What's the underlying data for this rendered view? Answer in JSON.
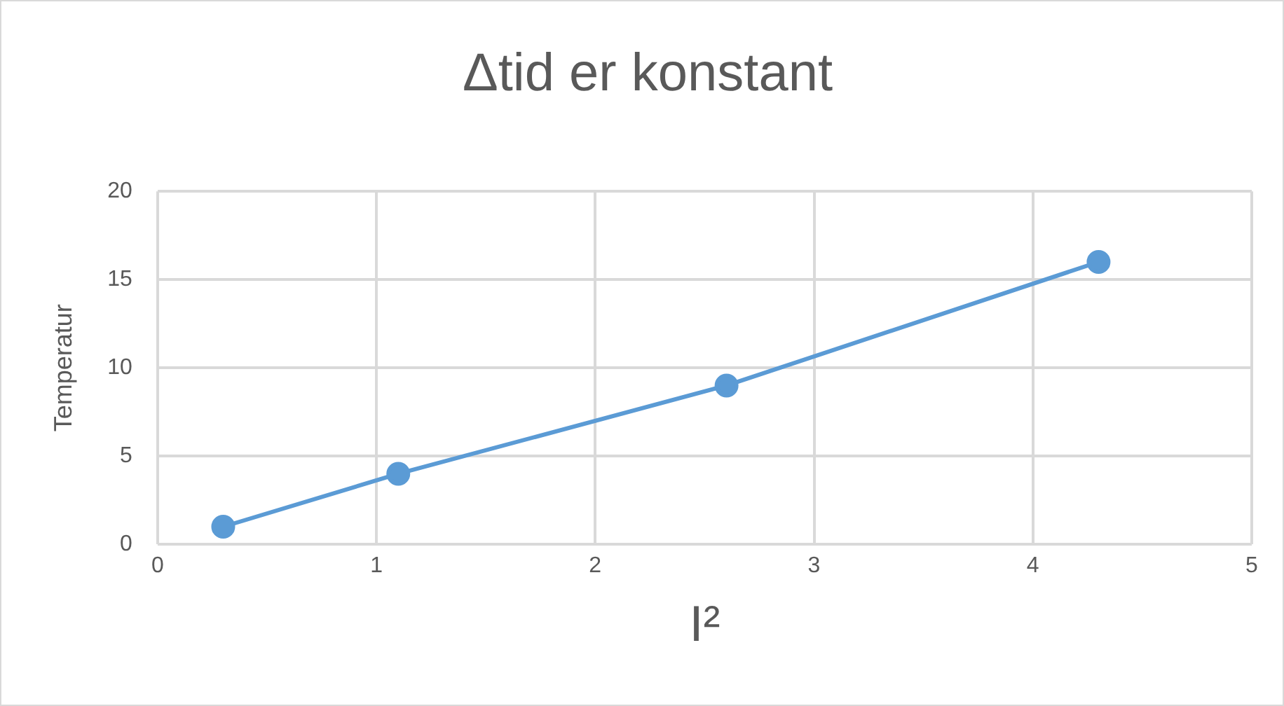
{
  "chart_data": {
    "type": "line",
    "title": "Δtid er konstant",
    "xlabel": "I²",
    "ylabel": "Temperatur",
    "x": [
      0.3,
      1.1,
      2.6,
      4.3
    ],
    "series": [
      {
        "color": "#5b9bd5",
        "values": [
          1,
          4,
          9,
          16
        ]
      }
    ],
    "xlim": [
      0,
      5
    ],
    "xticks": [
      0,
      1,
      2,
      3,
      4,
      5
    ],
    "ylim": [
      0,
      20
    ],
    "yticks": [
      0,
      5,
      10,
      15,
      20
    ],
    "grid": true,
    "marker": "circle",
    "line_style": "solid",
    "legend": false
  }
}
